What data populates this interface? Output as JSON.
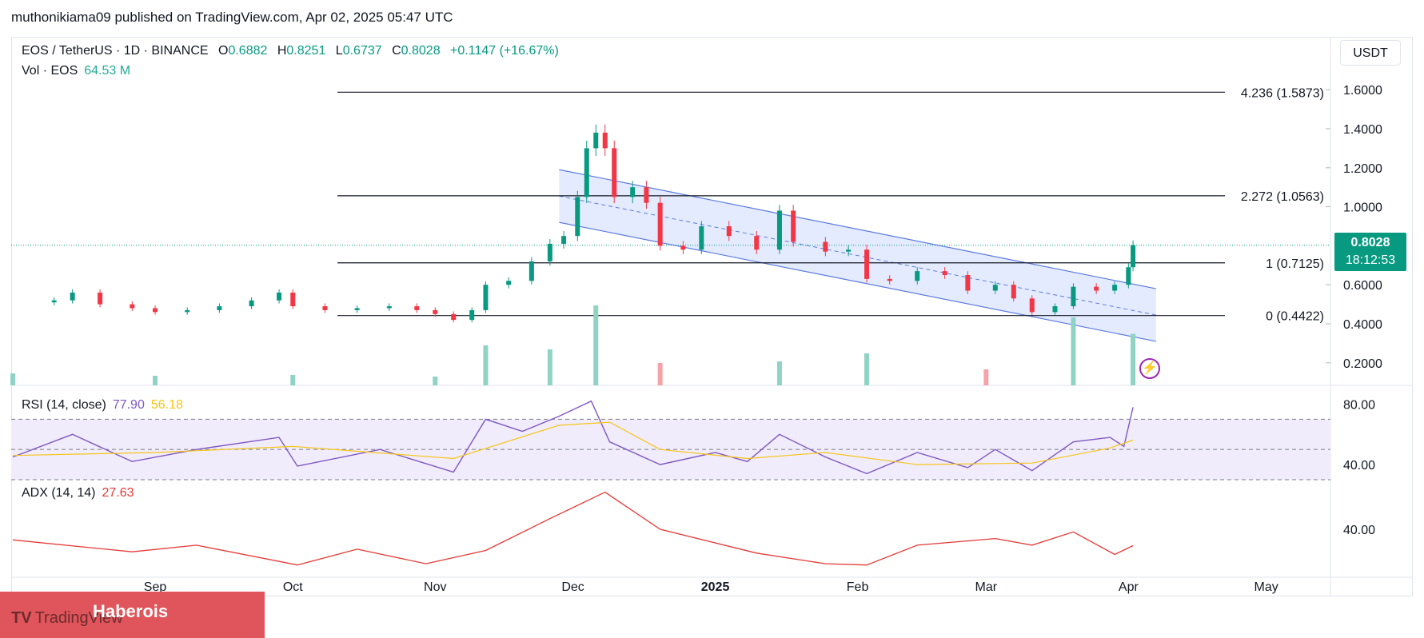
{
  "header": {
    "publisher": "muthonikiama09 published on TradingView.com, Apr 02, 2025 05:47 UTC"
  },
  "legend": {
    "symbol": "EOS / TetherUS · 1D · BINANCE",
    "o_key": "O",
    "o_val": "0.6882",
    "h_key": "H",
    "h_val": "0.8251",
    "l_key": "L",
    "l_val": "0.6737",
    "c_key": "C",
    "c_val": "0.8028",
    "change": "+0.1147 (+16.67%)",
    "vol_label": "Vol · EOS",
    "vol_val": "64.53 M"
  },
  "currency": "USDT",
  "price_tag": {
    "price": "0.8028",
    "countdown": "18:12:53"
  },
  "rsi_legend": {
    "label": "RSI (14, close)",
    "rsi": "77.90",
    "ma": "56.18"
  },
  "adx_legend": {
    "label": "ADX (14, 14)",
    "value": "27.63"
  },
  "watermark": {
    "brand": "TradingView",
    "overlay": "Haberois"
  },
  "colors": {
    "up": "#089981",
    "down": "#f23645",
    "up_vol": "#8fd3c4",
    "down_vol": "#f4a3a9",
    "channel_fill": "#dbe4ff",
    "channel_line": "#5b7be0",
    "rsi": "#7e57c2",
    "rsi_ma": "#f5c518",
    "adx": "#e53935",
    "rsi_band": "#f1ecfb"
  },
  "chart_data": [
    {
      "type": "candlestick",
      "title": "EOS / TetherUS · 1D · BINANCE",
      "x_ticks": [
        "Sep",
        "Oct",
        "Nov",
        "Dec",
        "2025",
        "Feb",
        "Mar",
        "Apr",
        "May"
      ],
      "y_ticks": [
        "1.6000",
        "1.4000",
        "1.2000",
        "1.0000",
        "0.6000",
        "0.4000",
        "0.2000"
      ],
      "ylim": [
        0.15,
        1.65
      ],
      "last_close": 0.8028,
      "fib_levels": [
        {
          "label": "4.236 (1.5873)",
          "value": 1.5873
        },
        {
          "label": "2.272 (1.0563)",
          "value": 1.0563
        },
        {
          "label": "1 (0.7125)",
          "value": 0.7125
        },
        {
          "label": "0 (0.4422)",
          "value": 0.4422
        }
      ],
      "channel": {
        "start": "2024-11-28",
        "end": "2025-04-07",
        "upper": [
          1.19,
          0.58
        ],
        "lower": [
          0.92,
          0.31
        ]
      },
      "series": [
        {
          "price": [
            [
              "2024-08-01",
              0.51
            ],
            [
              "2024-08-10",
              0.52
            ],
            [
              "2024-08-14",
              0.56
            ],
            [
              "2024-08-20",
              0.5
            ],
            [
              "2024-08-27",
              0.48
            ],
            [
              "2024-09-01",
              0.46
            ],
            [
              "2024-09-08",
              0.47
            ],
            [
              "2024-09-15",
              0.49
            ],
            [
              "2024-09-22",
              0.52
            ],
            [
              "2024-09-28",
              0.56
            ],
            [
              "2024-10-01",
              0.49
            ],
            [
              "2024-10-08",
              0.47
            ],
            [
              "2024-10-15",
              0.48
            ],
            [
              "2024-10-22",
              0.49
            ],
            [
              "2024-10-28",
              0.47
            ],
            [
              "2024-11-01",
              0.45
            ],
            [
              "2024-11-05",
              0.42
            ],
            [
              "2024-11-09",
              0.47
            ],
            [
              "2024-11-12",
              0.6
            ],
            [
              "2024-11-17",
              0.62
            ],
            [
              "2024-11-22",
              0.72
            ],
            [
              "2024-11-26",
              0.81
            ],
            [
              "2024-11-29",
              0.85
            ],
            [
              "2024-12-02",
              1.05
            ],
            [
              "2024-12-04",
              1.3
            ],
            [
              "2024-12-06",
              1.38
            ],
            [
              "2024-12-08",
              1.3
            ],
            [
              "2024-12-10",
              1.05
            ],
            [
              "2024-12-14",
              1.1
            ],
            [
              "2024-12-17",
              1.02
            ],
            [
              "2024-12-20",
              0.8
            ],
            [
              "2024-12-25",
              0.78
            ],
            [
              "2024-12-29",
              0.9
            ],
            [
              "2025-01-04",
              0.85
            ],
            [
              "2025-01-10",
              0.78
            ],
            [
              "2025-01-15",
              0.98
            ],
            [
              "2025-01-18",
              0.82
            ],
            [
              "2025-01-25",
              0.77
            ],
            [
              "2025-01-30",
              0.78
            ],
            [
              "2025-02-03",
              0.63
            ],
            [
              "2025-02-08",
              0.62
            ],
            [
              "2025-02-14",
              0.67
            ],
            [
              "2025-02-20",
              0.65
            ],
            [
              "2025-02-25",
              0.57
            ],
            [
              "2025-03-03",
              0.6
            ],
            [
              "2025-03-07",
              0.53
            ],
            [
              "2025-03-11",
              0.46
            ],
            [
              "2025-03-16",
              0.49
            ],
            [
              "2025-03-20",
              0.59
            ],
            [
              "2025-03-25",
              0.57
            ],
            [
              "2025-03-29",
              0.6
            ],
            [
              "2025-04-01",
              0.69
            ],
            [
              "2025-04-02",
              0.8028
            ]
          ]
        }
      ]
    },
    {
      "type": "bar",
      "title": "Vol · EOS",
      "x": [
        "2024-08-01",
        "2024-09-01",
        "2024-10-01",
        "2024-11-01",
        "2024-11-12",
        "2024-11-26",
        "2024-12-06",
        "2024-12-20",
        "2025-01-15",
        "2025-02-03",
        "2025-03-01",
        "2025-03-20",
        "2025-04-02"
      ],
      "values": [
        15,
        12,
        13,
        11,
        50,
        45,
        100,
        28,
        30,
        40,
        20,
        85,
        64.53
      ]
    },
    {
      "type": "line",
      "title": "RSI (14, close)",
      "ylim": [
        30,
        85
      ],
      "y_ticks": [
        "80.00",
        "40.00"
      ],
      "levels": [
        70,
        50,
        30
      ],
      "series": [
        {
          "name": "RSI",
          "points": [
            [
              "2024-08-01",
              45
            ],
            [
              "2024-08-14",
              60
            ],
            [
              "2024-08-27",
              42
            ],
            [
              "2024-09-10",
              50
            ],
            [
              "2024-09-28",
              58
            ],
            [
              "2024-10-02",
              39
            ],
            [
              "2024-10-20",
              50
            ],
            [
              "2024-11-05",
              35
            ],
            [
              "2024-11-12",
              70
            ],
            [
              "2024-11-20",
              62
            ],
            [
              "2024-11-28",
              72
            ],
            [
              "2024-12-05",
              82
            ],
            [
              "2024-12-09",
              55
            ],
            [
              "2024-12-20",
              40
            ],
            [
              "2025-01-01",
              48
            ],
            [
              "2025-01-08",
              42
            ],
            [
              "2025-01-15",
              60
            ],
            [
              "2025-01-25",
              45
            ],
            [
              "2025-02-03",
              34
            ],
            [
              "2025-02-14",
              48
            ],
            [
              "2025-02-25",
              38
            ],
            [
              "2025-03-03",
              50
            ],
            [
              "2025-03-11",
              36
            ],
            [
              "2025-03-20",
              55
            ],
            [
              "2025-03-28",
              58
            ],
            [
              "2025-03-31",
              52
            ],
            [
              "2025-04-02",
              77.9
            ]
          ]
        },
        {
          "name": "RSI MA",
          "points": [
            [
              "2024-08-01",
              46
            ],
            [
              "2024-09-01",
              48
            ],
            [
              "2024-10-01",
              52
            ],
            [
              "2024-11-05",
              44
            ],
            [
              "2024-11-28",
              66
            ],
            [
              "2024-12-09",
              68
            ],
            [
              "2024-12-20",
              50
            ],
            [
              "2025-01-08",
              44
            ],
            [
              "2025-01-25",
              48
            ],
            [
              "2025-02-14",
              40
            ],
            [
              "2025-03-11",
              41
            ],
            [
              "2025-03-28",
              51
            ],
            [
              "2025-04-02",
              56.18
            ]
          ]
        }
      ]
    },
    {
      "type": "line",
      "title": "ADX (14, 14)",
      "ylim": [
        5,
        75
      ],
      "y_ticks": [
        "40.00"
      ],
      "series": [
        {
          "name": "ADX",
          "points": [
            [
              "2024-08-01",
              32
            ],
            [
              "2024-08-27",
              23
            ],
            [
              "2024-09-10",
              28
            ],
            [
              "2024-10-02",
              13
            ],
            [
              "2024-10-15",
              25
            ],
            [
              "2024-10-30",
              14
            ],
            [
              "2024-11-12",
              24
            ],
            [
              "2024-11-26",
              48
            ],
            [
              "2024-12-08",
              68
            ],
            [
              "2024-12-20",
              40
            ],
            [
              "2025-01-10",
              22
            ],
            [
              "2025-01-25",
              14
            ],
            [
              "2025-02-03",
              13
            ],
            [
              "2025-02-14",
              28
            ],
            [
              "2025-03-03",
              33
            ],
            [
              "2025-03-11",
              28
            ],
            [
              "2025-03-20",
              38
            ],
            [
              "2025-03-29",
              21
            ],
            [
              "2025-04-02",
              27.63
            ]
          ]
        }
      ]
    }
  ]
}
